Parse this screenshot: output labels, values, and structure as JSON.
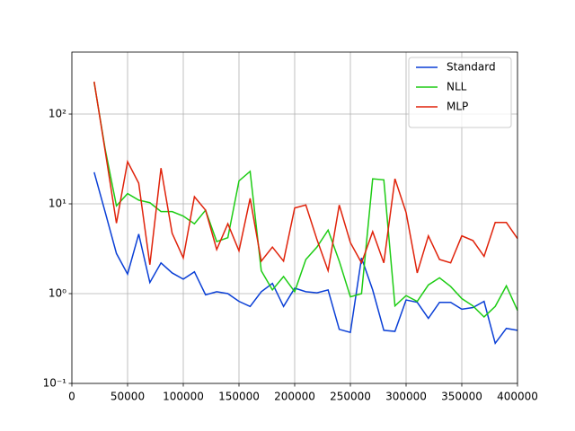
{
  "chart_data": {
    "type": "line",
    "x": [
      20000,
      30000,
      40000,
      50000,
      60000,
      70000,
      80000,
      90000,
      100000,
      110000,
      120000,
      130000,
      140000,
      150000,
      160000,
      170000,
      180000,
      190000,
      200000,
      210000,
      220000,
      230000,
      240000,
      250000,
      260000,
      270000,
      280000,
      290000,
      300000,
      310000,
      320000,
      330000,
      340000,
      350000,
      360000,
      370000,
      380000,
      390000,
      400000
    ],
    "series": [
      {
        "name": "Standard",
        "color": "#0a3fd6",
        "values": [
          22.5,
          8,
          2.8,
          1.65,
          4.6,
          1.33,
          2.2,
          1.7,
          1.45,
          1.75,
          0.97,
          1.05,
          1.0,
          0.82,
          0.72,
          1.05,
          1.3,
          0.72,
          1.15,
          1.05,
          1.02,
          1.1,
          0.4,
          0.37,
          2.5,
          1.1,
          0.39,
          0.38,
          0.85,
          0.8,
          0.53,
          0.8,
          0.8,
          0.67,
          0.7,
          0.82,
          0.28,
          0.41,
          0.39
        ]
      },
      {
        "name": "NLL",
        "color": "#1dcc14",
        "values": [
          225,
          40,
          9.5,
          13,
          11,
          10.3,
          8.2,
          8.2,
          7.3,
          6,
          8.5,
          3.8,
          4.2,
          18,
          23,
          1.8,
          1.1,
          1.55,
          1.05,
          2.4,
          3.3,
          5.1,
          2.3,
          0.92,
          1.0,
          19,
          18.5,
          0.73,
          0.95,
          0.82,
          1.25,
          1.5,
          1.2,
          0.88,
          0.73,
          0.55,
          0.72,
          1.22,
          0.65
        ]
      },
      {
        "name": "MLP",
        "color": "#e0220a",
        "values": [
          230,
          38,
          6.1,
          29.5,
          17,
          2.1,
          25,
          4.7,
          2.5,
          12,
          8.5,
          3.1,
          6,
          3,
          11.5,
          2.3,
          3.3,
          2.3,
          9,
          9.7,
          4,
          1.8,
          9.7,
          3.7,
          2.2,
          4.9,
          2.2,
          19,
          8,
          1.7,
          4.4,
          2.4,
          2.2,
          4.4,
          3.9,
          2.6,
          6.2,
          6.2,
          4.1
        ]
      }
    ],
    "xlim": [
      0,
      400000
    ],
    "xticks": [
      0,
      50000,
      100000,
      150000,
      200000,
      250000,
      300000,
      350000,
      400000
    ],
    "ylim": [
      0.1,
      490
    ],
    "log_y": true,
    "yticks": [
      {
        "value": 0.1,
        "label": "10⁻¹"
      },
      {
        "value": 1,
        "label": "10⁰"
      },
      {
        "value": 10,
        "label": "10¹"
      },
      {
        "value": 100,
        "label": "10²"
      }
    ],
    "grid": true,
    "legend": "upper right"
  }
}
